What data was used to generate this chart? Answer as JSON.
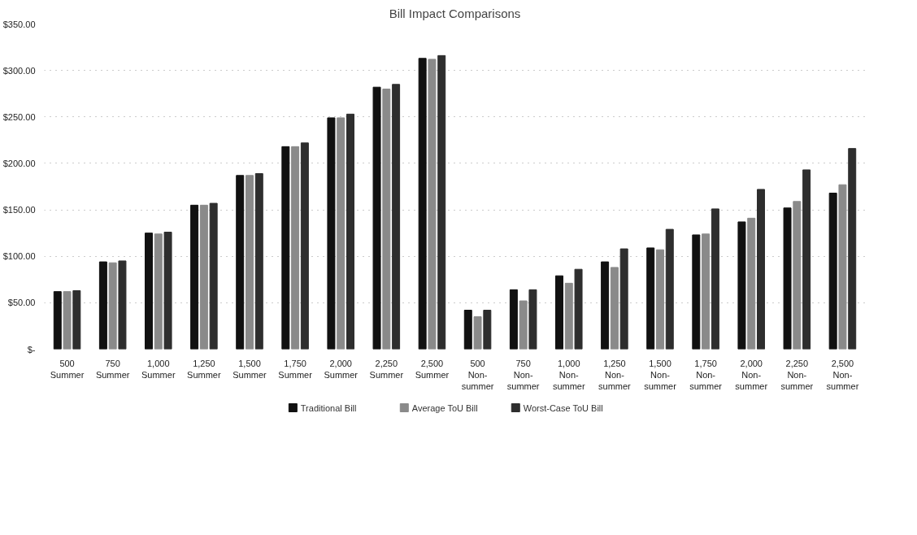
{
  "chart_data": {
    "type": "bar",
    "title": "Bill Impact Comparisons",
    "categories": [
      "500\nSummer",
      "750\nSummer",
      "1,000\nSummer",
      "1,250\nSummer",
      "1,500\nSummer",
      "1,750\nSummer",
      "2,000\nSummer",
      "2,250\nSummer",
      "2,500\nSummer",
      "500\nNon-\nsummer",
      "750\nNon-\nsummer",
      "1,000\nNon-\nsummer",
      "1,250\nNon-\nsummer",
      "1,500\nNon-\nsummer",
      "1,750\nNon-\nsummer",
      "2,000\nNon-\nsummer",
      "2,250\nNon-\nsummer",
      "2,500\nNon-\nsummer"
    ],
    "series": [
      {
        "name": "Traditional Bill",
        "color": "#111111",
        "values": [
          62,
          94,
          125,
          155,
          187,
          218,
          249,
          282,
          313,
          42,
          64,
          79,
          94,
          109,
          123,
          137,
          152,
          168
        ]
      },
      {
        "name": "Average ToU Bill",
        "color": "#8a8a8a",
        "values": [
          62,
          93,
          124,
          155,
          187,
          218,
          249,
          280,
          312,
          35,
          52,
          71,
          88,
          107,
          124,
          141,
          159,
          177
        ]
      },
      {
        "name": "Worst-Case ToU Bill",
        "color": "#2e2e2e",
        "values": [
          63,
          95,
          126,
          157,
          189,
          222,
          253,
          285,
          316,
          42,
          64,
          86,
          108,
          129,
          151,
          172,
          193,
          216
        ]
      }
    ],
    "ylim": [
      0,
      350
    ],
    "yticks": [
      {
        "value": 0,
        "label": "$-"
      },
      {
        "value": 50,
        "label": "$50.00"
      },
      {
        "value": 100,
        "label": "$100.00"
      },
      {
        "value": 150,
        "label": "$150.00"
      },
      {
        "value": 200,
        "label": "$200.00"
      },
      {
        "value": 250,
        "label": "$250.00"
      },
      {
        "value": 300,
        "label": "$300.00"
      },
      {
        "value": 350,
        "label": "$350.00"
      }
    ],
    "grid": "y",
    "legend": "bottom"
  }
}
